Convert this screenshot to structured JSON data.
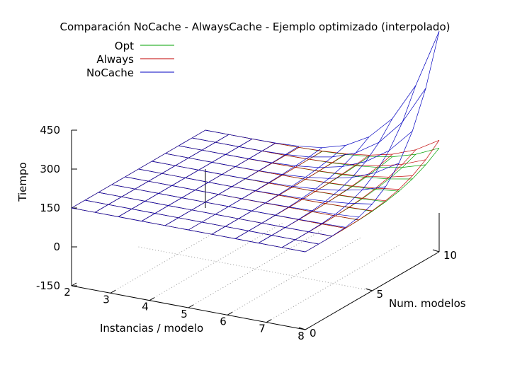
{
  "chart_data": {
    "type": "surface",
    "title": "Comparación NoCache - AlwaysCache - Ejemplo optimizado (interpolado)",
    "xlabel": "Instancias / modelo",
    "ylabel": "Num. modelos",
    "zlabel": "Tiempo",
    "x_ticks": [
      "2",
      "3",
      "4",
      "5",
      "6",
      "7",
      "8"
    ],
    "y_ticks": [
      "0",
      "5",
      "10"
    ],
    "z_ticks": [
      "450",
      "300",
      "150",
      "0",
      "-150"
    ],
    "xlim": [
      2,
      8
    ],
    "ylim": [
      0,
      10
    ],
    "zlim": [
      -150,
      450
    ],
    "legend_position": "top-left",
    "grid": "dotted base grid",
    "series": [
      {
        "name": "Opt",
        "color": "#00a000",
        "surface_summary": {
          "mostly_flat_value": 150,
          "max_corner_value": 250
        }
      },
      {
        "name": "Always",
        "color": "#c00000",
        "surface_summary": {
          "mostly_flat_value": 150,
          "max_corner_value": 280
        }
      },
      {
        "name": "NoCache",
        "color": "#0000c0",
        "surface_summary": {
          "mostly_flat_value": 150,
          "max_corner_value": 700
        }
      }
    ]
  }
}
